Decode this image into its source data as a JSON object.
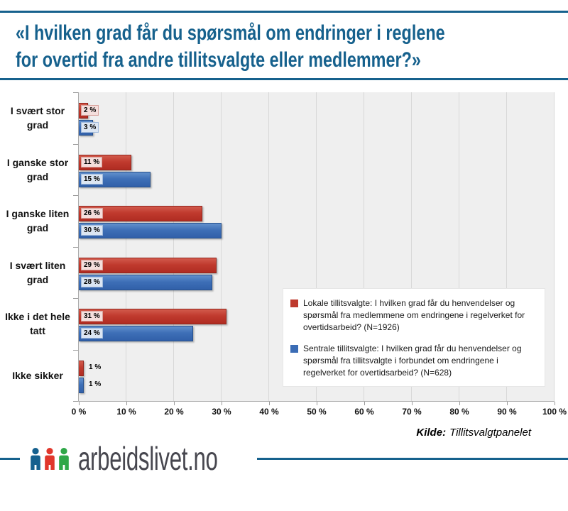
{
  "header": {
    "title": "«I hvilken grad får du spørsmål om endringer i reglene for overtid fra andre tillitsvalgte eller medlemmer?»",
    "title_lines": [
      "«I hvilken grad får du spørsmål om endringer i reglene",
      "for overtid fra andre tillitsvalgte eller medlemmer?»"
    ],
    "accent_color": "#16618D"
  },
  "chart_data": {
    "type": "bar",
    "orientation": "horizontal",
    "title": "",
    "xlabel": "",
    "ylabel": "",
    "xlim": [
      0,
      100
    ],
    "grid": true,
    "legend_position": "middle-right",
    "plot_background": "#EFEFEF",
    "value_suffix": " %",
    "categories": [
      {
        "label": "I svært stor grad",
        "lines": [
          "I svært stor",
          "grad"
        ]
      },
      {
        "label": "I ganske stor grad",
        "lines": [
          "I ganske stor",
          "grad"
        ]
      },
      {
        "label": "I ganske liten grad",
        "lines": [
          "I ganske liten",
          "grad"
        ]
      },
      {
        "label": "I svært liten grad",
        "lines": [
          "I svært liten",
          "grad"
        ]
      },
      {
        "label": "Ikke i det hele tatt",
        "lines": [
          "Ikke i det hele",
          "tatt"
        ]
      },
      {
        "label": "Ikke sikker",
        "lines": [
          "Ikke sikker"
        ]
      }
    ],
    "series": [
      {
        "name": "Lokale tillitsvalgte: I hvilken grad får du henvendelser og spørsmål fra medlemmene om endringene i regelverket for overtidsarbeid? (N=1926)",
        "color": "#BE3A2E",
        "values": [
          2,
          11,
          26,
          29,
          31,
          1
        ]
      },
      {
        "name": "Sentrale tillitsvalgte: I hvilken grad får du henvendelser og spørsmål fra tillitsvalgte i forbundet om endringene i regelverket for overtidsarbeid? (N=628)",
        "color": "#3A6CB5",
        "values": [
          3,
          15,
          30,
          28,
          24,
          1
        ]
      }
    ],
    "x_ticks": [
      "0 %",
      "10 %",
      "20 %",
      "30 %",
      "40 %",
      "50 %",
      "60 %",
      "70 %",
      "80 %",
      "90 %",
      "100 %"
    ]
  },
  "source": {
    "label": "Kilde:",
    "text": "Tillitsvalgtpanelet"
  },
  "footer": {
    "logo_text": "arbeidslivet.no",
    "logo_icon_colors": [
      "#15608E",
      "#E1372C",
      "#2EA747"
    ]
  }
}
